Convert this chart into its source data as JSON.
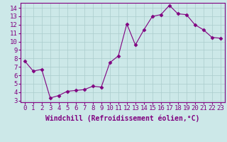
{
  "x": [
    0,
    1,
    2,
    3,
    4,
    5,
    6,
    7,
    8,
    9,
    10,
    11,
    12,
    13,
    14,
    15,
    16,
    17,
    18,
    19,
    20,
    21,
    22,
    23
  ],
  "y": [
    7.7,
    6.5,
    6.7,
    3.3,
    3.6,
    4.1,
    4.2,
    4.3,
    4.7,
    4.6,
    7.5,
    8.3,
    12.1,
    9.6,
    11.4,
    13.0,
    13.2,
    14.3,
    13.3,
    13.2,
    12.0,
    11.4,
    10.5,
    10.4
  ],
  "line_color": "#800080",
  "marker": "D",
  "marker_size": 2.5,
  "bg_color": "#cce8e8",
  "grid_color": "#aacccc",
  "spine_color": "#800080",
  "xlabel": "Windchill (Refroidissement éolien,°C)",
  "xlabel_bg": "#800080",
  "xlabel_fg": "#ffffff",
  "xtick_fg": "#800080",
  "ylim": [
    2.8,
    14.6
  ],
  "xlim": [
    -0.5,
    23.5
  ],
  "yticks": [
    3,
    4,
    5,
    6,
    7,
    8,
    9,
    10,
    11,
    12,
    13,
    14
  ],
  "xticks": [
    0,
    1,
    2,
    3,
    4,
    5,
    6,
    7,
    8,
    9,
    10,
    11,
    12,
    13,
    14,
    15,
    16,
    17,
    18,
    19,
    20,
    21,
    22,
    23
  ],
  "xlabel_fontsize": 7,
  "tick_fontsize": 6.5,
  "linewidth": 0.8
}
